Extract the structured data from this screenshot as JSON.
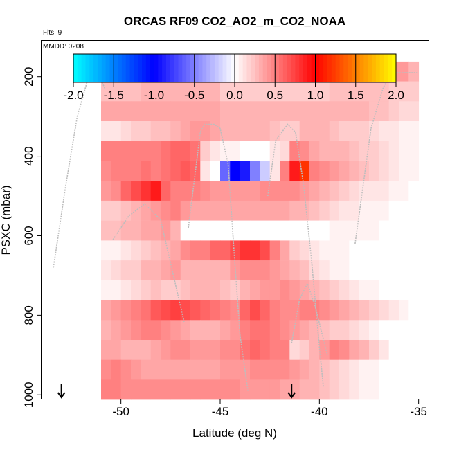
{
  "chart_data": {
    "type": "heatmap",
    "title": "ORCAS RF09 CO2_AO2_m_CO2_NOAA",
    "subtitle": "Flts: 9",
    "annotation": "MMDD: 0208",
    "xlabel": "Latitude (deg N)",
    "ylabel": "PSXC (mbar)",
    "xlim": [
      -54,
      -34.5
    ],
    "ylim": [
      1010,
      110
    ],
    "y_reversed": true,
    "x_ticks": [
      -50,
      -45,
      -40,
      -35
    ],
    "x_tick_labels": [
      "-50",
      "-45",
      "-40",
      "-35"
    ],
    "y_ticks": [
      200,
      400,
      600,
      800,
      1000
    ],
    "y_tick_labels": [
      "200",
      "400",
      "600",
      "800",
      "1000"
    ],
    "grid": false,
    "colorbar": {
      "range": [
        -2.0,
        2.0
      ],
      "ticks": [
        -2.0,
        -1.5,
        -1.0,
        -0.5,
        0.0,
        0.5,
        1.0,
        1.5,
        2.0
      ],
      "tick_labels": [
        "-2.0",
        "-1.5",
        "-1.0",
        "-0.5",
        "0.0",
        "0.5",
        "1.0",
        "1.5",
        "2.0"
      ],
      "colors": [
        "#00ffff",
        "#0000ff",
        "#ffffff",
        "#ff0000",
        "#ffff00"
      ],
      "position": "top"
    },
    "heatmap_bins": {
      "lat_start": -51.5,
      "lat_step": 0.5,
      "rows": [
        {
          "p": 187,
          "dp": 50,
          "lat_from": -51.0,
          "cells": [
            0.4,
            0.4,
            0.4,
            0.5,
            0.5,
            0.5,
            0.5,
            0.5,
            0.5,
            0.5,
            0.5,
            0.5,
            0.5,
            0.5,
            0.5,
            0.5,
            0.5,
            0.5,
            0.5,
            0.5,
            0.5,
            0.5,
            0.5,
            0.5,
            0.5,
            0.5,
            0.5,
            0.4,
            0.4,
            0.4,
            0.4,
            0.3
          ]
        },
        {
          "p": 237,
          "dp": 50,
          "lat_from": -51.0,
          "cells": [
            0.25,
            0.25,
            0.25,
            0.25,
            0.3,
            0.3,
            0.3,
            0.3,
            0.3,
            0.3,
            0.3,
            0.3,
            0.2,
            0.2,
            0.2,
            0.2,
            0.2,
            0.2,
            0.2,
            0.2,
            0.2,
            0.2,
            0.2,
            0.25,
            0.25,
            0.25,
            0.25,
            0.25,
            0.25,
            0.2,
            0.2,
            0.2
          ]
        },
        {
          "p": 287,
          "dp": 50,
          "lat_from": -51.0,
          "cells": [
            0.35,
            0.35,
            0.35,
            0.35,
            0.35,
            0.35,
            0.35,
            0.35,
            0.35,
            0.35,
            0.35,
            0.35,
            0.3,
            0.3,
            0.3,
            0.3,
            0.3,
            0.3,
            0.3,
            0.3,
            0.3,
            0.3,
            0.3,
            0.3,
            0.3,
            0.3,
            0.3,
            0.25,
            0.25,
            0.2,
            0.15,
            0.15
          ]
        },
        {
          "p": 337,
          "dp": 50,
          "lat_from": -51.0,
          "cells": [
            0.1,
            0.1,
            0.15,
            0.2,
            0.2,
            0.25,
            0.25,
            0.3,
            0.35,
            0.4,
            0.4,
            0.35,
            0.3,
            0.3,
            0.3,
            0.3,
            0.3,
            0.25,
            0.2,
            0.2,
            0.3,
            0.3,
            0.3,
            0.25,
            0.2,
            0.2,
            0.2,
            0.15,
            0.1,
            0.1,
            0.05,
            0.05
          ]
        },
        {
          "p": 387,
          "dp": 50,
          "lat_from": -51.0,
          "cells": [
            0.5,
            0.5,
            0.5,
            0.5,
            0.5,
            0.5,
            0.55,
            0.6,
            0.6,
            0.55,
            0.2,
            0.1,
            0.05,
            0.05,
            0.0,
            0.0,
            0.0,
            0.1,
            0.15,
            0.5,
            0.45,
            0.35,
            0.3,
            0.3,
            0.3,
            0.25,
            0.2,
            0.2,
            0.15,
            0.1,
            0.05,
            0.05
          ]
        },
        {
          "p": 437,
          "dp": 50,
          "lat_from": -51.0,
          "cells": [
            0.45,
            0.5,
            0.5,
            0.5,
            0.55,
            0.5,
            0.55,
            0.6,
            0.65,
            0.6,
            0.1,
            0.0,
            -0.6,
            -1.0,
            -0.9,
            -0.5,
            -0.2,
            0.1,
            0.5,
            0.9,
            1.2,
            0.5,
            0.45,
            0.4,
            0.35,
            0.3,
            0.25,
            0.2,
            0.15,
            0.1,
            0.05,
            0.05
          ]
        },
        {
          "p": 487,
          "dp": 50,
          "lat_from": -51.0,
          "cells": [
            0.4,
            0.45,
            0.6,
            0.7,
            0.8,
            0.9,
            0.6,
            0.5,
            0.5,
            0.5,
            0.45,
            0.4,
            0.4,
            0.4,
            0.4,
            0.4,
            0.45,
            0.45,
            0.45,
            0.45,
            0.4,
            0.35,
            0.3,
            0.25,
            0.2,
            0.15,
            0.1,
            0.1,
            0.1,
            0.05,
            0.05,
            0.0
          ]
        },
        {
          "p": 537,
          "dp": 50,
          "lat_from": -51.0,
          "cells": [
            0.2,
            0.2,
            0.25,
            0.3,
            0.35,
            0.4,
            0.45,
            0.5,
            0.4,
            0.35,
            0.35,
            0.35,
            0.35,
            0.35,
            0.35,
            0.35,
            0.35,
            0.35,
            0.35,
            0.3,
            0.3,
            0.25,
            0.2,
            0.15,
            0.1,
            0.1,
            0.05,
            0.05,
            0.05,
            0.0,
            0.0,
            0.0
          ]
        },
        {
          "p": 587,
          "dp": 50,
          "lat_from": -51.0,
          "cells": [
            0.25,
            0.25,
            0.3,
            0.3,
            0.35,
            0.35,
            0.4,
            0.3,
            0.0,
            0.0,
            0.0,
            0.0,
            0.0,
            0.0,
            0.0,
            0.0,
            0.0,
            0.0,
            0.0,
            0.0,
            0.0,
            0.0,
            0.0,
            0.05,
            0.05,
            0.05,
            0.05,
            0.05,
            0.0,
            0.0,
            0.0,
            0.0
          ]
        },
        {
          "p": 637,
          "dp": 50,
          "lat_from": -51.0,
          "cells": [
            0.05,
            0.05,
            0.1,
            0.15,
            0.2,
            0.25,
            0.3,
            0.35,
            0.45,
            0.5,
            0.5,
            0.6,
            0.6,
            0.7,
            0.8,
            0.8,
            0.7,
            0.5,
            0.35,
            0.2,
            0.15,
            0.1,
            0.05,
            0.05,
            0.05,
            0.0,
            0.0,
            0.0,
            0.0,
            0.0,
            0.0,
            0.0
          ]
        },
        {
          "p": 687,
          "dp": 50,
          "lat_from": -51.0,
          "cells": [
            0.1,
            0.15,
            0.2,
            0.2,
            0.3,
            0.3,
            0.35,
            0.4,
            0.3,
            0.3,
            0.3,
            0.3,
            0.3,
            0.4,
            0.45,
            0.45,
            0.45,
            0.4,
            0.35,
            0.3,
            0.25,
            0.15,
            0.1,
            0.05,
            0.05,
            0.0,
            0.0,
            0.0,
            0.0,
            0.0,
            0.0,
            0.0
          ]
        },
        {
          "p": 737,
          "dp": 50,
          "lat_from": -51.0,
          "cells": [
            0.05,
            0.05,
            0.1,
            0.15,
            0.2,
            0.25,
            0.2,
            0.2,
            0.25,
            0.3,
            0.3,
            0.3,
            0.25,
            0.2,
            0.3,
            0.35,
            0.4,
            0.4,
            0.45,
            0.4,
            0.35,
            0.3,
            0.25,
            0.2,
            0.15,
            0.1,
            0.05,
            0.05,
            0.0,
            0.0,
            0.0,
            0.0
          ]
        },
        {
          "p": 787,
          "dp": 50,
          "lat_from": -51.0,
          "cells": [
            0.35,
            0.4,
            0.45,
            0.5,
            0.55,
            0.65,
            0.7,
            0.75,
            0.7,
            0.65,
            0.6,
            0.55,
            0.5,
            0.45,
            0.6,
            0.7,
            0.6,
            0.5,
            0.45,
            0.45,
            0.5,
            0.5,
            0.45,
            0.4,
            0.35,
            0.3,
            0.25,
            0.2,
            0.15,
            0.1,
            0.05,
            0.0
          ]
        },
        {
          "p": 837,
          "dp": 50,
          "lat_from": -51.0,
          "cells": [
            0.3,
            0.35,
            0.4,
            0.45,
            0.5,
            0.5,
            0.45,
            0.4,
            0.35,
            0.3,
            0.3,
            0.3,
            0.35,
            0.4,
            0.5,
            0.55,
            0.55,
            0.5,
            0.45,
            0.4,
            0.35,
            0.3,
            0.25,
            0.2,
            0.2,
            0.15,
            0.1,
            0.05,
            0.0,
            0.0,
            0.0,
            0.0
          ]
        },
        {
          "p": 887,
          "dp": 50,
          "lat_from": -51.0,
          "cells": [
            0.35,
            0.35,
            0.3,
            0.3,
            0.3,
            0.35,
            0.4,
            0.45,
            0.45,
            0.4,
            0.4,
            0.4,
            0.45,
            0.45,
            0.55,
            0.6,
            0.55,
            0.5,
            0.5,
            0.15,
            0.2,
            0.3,
            0.4,
            0.5,
            0.45,
            0.35,
            0.3,
            0.2,
            0.1,
            0.0,
            0.0,
            0.0
          ]
        },
        {
          "p": 937,
          "dp": 50,
          "lat_from": -51.0,
          "cells": [
            0.45,
            0.5,
            0.45,
            0.4,
            0.35,
            0.35,
            0.35,
            0.35,
            0.35,
            0.35,
            0.35,
            0.35,
            0.4,
            0.4,
            0.4,
            0.45,
            0.45,
            0.45,
            0.45,
            0.4,
            0.35,
            0.3,
            0.25,
            0.2,
            0.15,
            0.1,
            0.05,
            0.05,
            0.0,
            0.0,
            0.0,
            0.0
          ]
        },
        {
          "p": 987,
          "dp": 50,
          "lat_from": -51.0,
          "cells": [
            0.5,
            0.5,
            0.45,
            0.45,
            0.45,
            0.45,
            0.45,
            0.45,
            0.45,
            0.45,
            0.45,
            0.45,
            0.45,
            0.45,
            0.4,
            0.4,
            0.4,
            0.4,
            0.35,
            0.35,
            0.3,
            0.3,
            0.25,
            0.2,
            0.15,
            0.1,
            0.05,
            0.05,
            0.0,
            0.0,
            0.0,
            0.0
          ]
        }
      ]
    },
    "markers": [
      {
        "symbol": "down-arrow",
        "lat": -53.0,
        "p": 1000
      },
      {
        "symbol": "down-arrow",
        "lat": -41.4,
        "p": 1000
      }
    ]
  }
}
